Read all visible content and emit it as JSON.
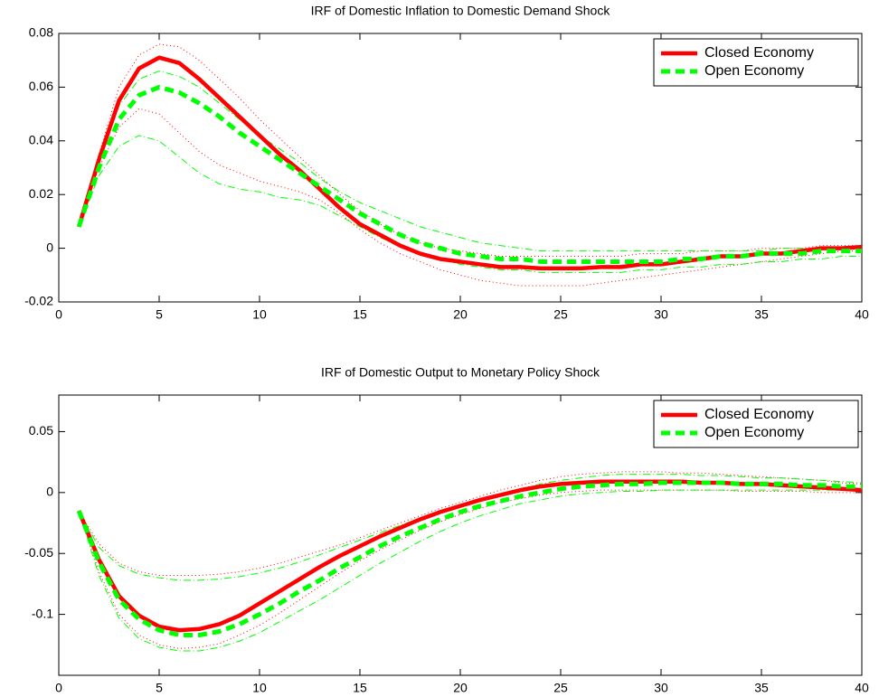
{
  "chart_data": [
    {
      "type": "line",
      "title": "IRF of Domestic Inflation to Domestic Demand Shock",
      "x": [
        1,
        2,
        3,
        4,
        5,
        6,
        7,
        8,
        9,
        10,
        11,
        12,
        13,
        14,
        15,
        16,
        17,
        18,
        19,
        20,
        21,
        22,
        23,
        24,
        25,
        26,
        27,
        28,
        29,
        30,
        31,
        32,
        33,
        34,
        35,
        36,
        37,
        38,
        39,
        40
      ],
      "xlim": [
        0,
        40
      ],
      "xticks": [
        0,
        5,
        10,
        15,
        20,
        25,
        30,
        35,
        40
      ],
      "ylim": [
        -0.02,
        0.08
      ],
      "yticks": [
        -0.02,
        0,
        0.02,
        0.04,
        0.06,
        0.08
      ],
      "legend": "upper right",
      "series": [
        {
          "color": "#ff0000",
          "style": "dotted",
          "values": [
            0.008,
            0.035,
            0.06,
            0.072,
            0.076,
            0.075,
            0.07,
            0.063,
            0.056,
            0.048,
            0.041,
            0.034,
            0.027,
            0.02,
            0.014,
            0.009,
            0.005,
            0.002,
            0,
            -0.001,
            -0.002,
            -0.003,
            -0.003,
            -0.003,
            -0.003,
            -0.003,
            -0.003,
            -0.003,
            -0.002,
            -0.002,
            -0.002,
            -0.001,
            -0.001,
            -0.001,
            0,
            0,
            0,
            0.001,
            0.001,
            0.001
          ]
        },
        {
          "color": "#ff0000",
          "style": "dotted",
          "values": [
            0.008,
            0.03,
            0.045,
            0.052,
            0.05,
            0.043,
            0.036,
            0.031,
            0.028,
            0.025,
            0.023,
            0.021,
            0.018,
            0.013,
            0.007,
            0.002,
            -0.002,
            -0.005,
            -0.008,
            -0.01,
            -0.012,
            -0.013,
            -0.014,
            -0.014,
            -0.014,
            -0.014,
            -0.013,
            -0.012,
            -0.011,
            -0.01,
            -0.009,
            -0.008,
            -0.007,
            -0.006,
            -0.005,
            -0.004,
            -0.003,
            -0.002,
            -0.001,
            -0.001
          ]
        },
        {
          "color": "#00ff00",
          "style": "dashdot",
          "values": [
            0.008,
            0.032,
            0.053,
            0.063,
            0.066,
            0.064,
            0.06,
            0.054,
            0.048,
            0.042,
            0.037,
            0.032,
            0.026,
            0.021,
            0.017,
            0.014,
            0.011,
            0.008,
            0.006,
            0.004,
            0.002,
            0.001,
            0,
            -0.001,
            -0.001,
            -0.001,
            -0.001,
            -0.001,
            -0.001,
            -0.001,
            -0.001,
            -0.001,
            -0.001,
            -0.001,
            -0.001,
            0,
            0,
            0,
            0,
            0
          ]
        },
        {
          "color": "#00ff00",
          "style": "dashdot",
          "values": [
            0.008,
            0.027,
            0.038,
            0.042,
            0.04,
            0.034,
            0.028,
            0.024,
            0.022,
            0.021,
            0.019,
            0.018,
            0.016,
            0.012,
            0.008,
            0.004,
            0.001,
            -0.002,
            -0.004,
            -0.006,
            -0.007,
            -0.008,
            -0.008,
            -0.009,
            -0.009,
            -0.009,
            -0.009,
            -0.009,
            -0.008,
            -0.008,
            -0.007,
            -0.007,
            -0.006,
            -0.006,
            -0.005,
            -0.005,
            -0.004,
            -0.004,
            -0.003,
            -0.003
          ]
        },
        {
          "name": "Closed Economy",
          "color": "#ff0000",
          "style": "solid",
          "values": [
            0.008,
            0.033,
            0.055,
            0.067,
            0.071,
            0.069,
            0.063,
            0.056,
            0.049,
            0.042,
            0.035,
            0.029,
            0.022,
            0.015,
            0.009,
            0.005,
            0.001,
            -0.002,
            -0.004,
            -0.005,
            -0.006,
            -0.007,
            -0.007,
            -0.0075,
            -0.0075,
            -0.0075,
            -0.007,
            -0.007,
            -0.006,
            -0.006,
            -0.005,
            -0.004,
            -0.003,
            -0.003,
            -0.002,
            -0.002,
            -0.001,
            0,
            0,
            0.0005
          ]
        },
        {
          "name": "Open Economy",
          "color": "#00ff00",
          "style": "dashed",
          "values": [
            0.008,
            0.03,
            0.048,
            0.057,
            0.06,
            0.058,
            0.054,
            0.049,
            0.043,
            0.038,
            0.033,
            0.028,
            0.023,
            0.018,
            0.013,
            0.009,
            0.005,
            0.002,
            0,
            -0.002,
            -0.003,
            -0.004,
            -0.004,
            -0.005,
            -0.005,
            -0.005,
            -0.005,
            -0.005,
            -0.005,
            -0.005,
            -0.004,
            -0.004,
            -0.003,
            -0.003,
            -0.002,
            -0.002,
            -0.002,
            -0.001,
            -0.001,
            -0.001
          ]
        }
      ]
    },
    {
      "type": "line",
      "title": "IRF of Domestic Output to Monetary Policy Shock",
      "x": [
        1,
        2,
        3,
        4,
        5,
        6,
        7,
        8,
        9,
        10,
        11,
        12,
        13,
        14,
        15,
        16,
        17,
        18,
        19,
        20,
        21,
        22,
        23,
        24,
        25,
        26,
        27,
        28,
        29,
        30,
        31,
        32,
        33,
        34,
        35,
        36,
        37,
        38,
        39,
        40
      ],
      "xlim": [
        0,
        40
      ],
      "xticks": [
        0,
        5,
        10,
        15,
        20,
        25,
        30,
        35,
        40
      ],
      "ylim": [
        -0.15,
        0.08
      ],
      "yticks": [
        -0.1,
        -0.05,
        0,
        0.05
      ],
      "legend": "upper right",
      "series": [
        {
          "color": "#ff0000",
          "style": "dotted",
          "values": [
            -0.015,
            -0.042,
            -0.058,
            -0.065,
            -0.068,
            -0.068,
            -0.068,
            -0.067,
            -0.065,
            -0.062,
            -0.058,
            -0.053,
            -0.048,
            -0.043,
            -0.037,
            -0.031,
            -0.025,
            -0.019,
            -0.013,
            -0.008,
            -0.003,
            0.002,
            0.006,
            0.01,
            0.013,
            0.015,
            0.016,
            0.017,
            0.017,
            0.017,
            0.016,
            0.016,
            0.015,
            0.014,
            0.013,
            0.012,
            0.011,
            0.01,
            0.008,
            0.007
          ]
        },
        {
          "color": "#ff0000",
          "style": "dotted",
          "values": [
            -0.015,
            -0.065,
            -0.1,
            -0.117,
            -0.125,
            -0.128,
            -0.127,
            -0.124,
            -0.117,
            -0.109,
            -0.099,
            -0.088,
            -0.077,
            -0.066,
            -0.056,
            -0.047,
            -0.039,
            -0.031,
            -0.024,
            -0.018,
            -0.013,
            -0.008,
            -0.005,
            -0.002,
            0,
            0.001,
            0.002,
            0.002,
            0.002,
            0.002,
            0.002,
            0.002,
            0.002,
            0.001,
            0.001,
            0.001,
            0.001,
            0,
            0,
            0
          ]
        },
        {
          "color": "#00ff00",
          "style": "dashdot",
          "values": [
            -0.015,
            -0.045,
            -0.06,
            -0.067,
            -0.07,
            -0.072,
            -0.072,
            -0.071,
            -0.069,
            -0.066,
            -0.062,
            -0.057,
            -0.051,
            -0.045,
            -0.039,
            -0.033,
            -0.027,
            -0.021,
            -0.015,
            -0.01,
            -0.005,
            -0.001,
            0.003,
            0.007,
            0.01,
            0.012,
            0.014,
            0.015,
            0.015,
            0.015,
            0.015,
            0.014,
            0.014,
            0.013,
            0.012,
            0.012,
            0.011,
            0.01,
            0.009,
            0.008
          ]
        },
        {
          "color": "#00ff00",
          "style": "dashdot",
          "values": [
            -0.015,
            -0.068,
            -0.103,
            -0.12,
            -0.127,
            -0.13,
            -0.13,
            -0.127,
            -0.122,
            -0.115,
            -0.106,
            -0.097,
            -0.088,
            -0.078,
            -0.068,
            -0.058,
            -0.049,
            -0.04,
            -0.032,
            -0.025,
            -0.019,
            -0.014,
            -0.009,
            -0.006,
            -0.003,
            -0.001,
            0,
            0.001,
            0.001,
            0.002,
            0.002,
            0.002,
            0.002,
            0.002,
            0.002,
            0.002,
            0.002,
            0.002,
            0.002,
            0.002
          ]
        },
        {
          "name": "Closed Economy",
          "color": "#ff0000",
          "style": "solid",
          "values": [
            -0.015,
            -0.055,
            -0.085,
            -0.101,
            -0.11,
            -0.113,
            -0.112,
            -0.108,
            -0.101,
            -0.091,
            -0.081,
            -0.071,
            -0.061,
            -0.052,
            -0.044,
            -0.036,
            -0.029,
            -0.022,
            -0.016,
            -0.011,
            -0.006,
            -0.002,
            0.002,
            0.005,
            0.007,
            0.008,
            0.009,
            0.009,
            0.009,
            0.009,
            0.009,
            0.008,
            0.008,
            0.007,
            0.007,
            0.006,
            0.005,
            0.004,
            0.003,
            0.002
          ]
        },
        {
          "name": "Open Economy",
          "color": "#00ff00",
          "style": "dashed",
          "values": [
            -0.015,
            -0.057,
            -0.088,
            -0.104,
            -0.113,
            -0.117,
            -0.117,
            -0.114,
            -0.108,
            -0.1,
            -0.091,
            -0.081,
            -0.072,
            -0.062,
            -0.053,
            -0.044,
            -0.036,
            -0.029,
            -0.022,
            -0.016,
            -0.011,
            -0.007,
            -0.003,
            0,
            0.003,
            0.005,
            0.006,
            0.007,
            0.007,
            0.008,
            0.008,
            0.008,
            0.008,
            0.007,
            0.007,
            0.007,
            0.006,
            0.006,
            0.005,
            0.005
          ]
        }
      ]
    }
  ]
}
